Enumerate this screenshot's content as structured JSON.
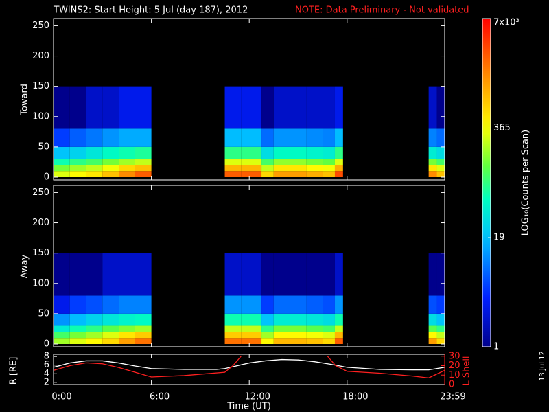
{
  "chart_data": [
    {
      "type": "heatmap",
      "title": "TWINS2: Start Height:  5 Jul (day 187), 2012",
      "note": "NOTE: Data Preliminary - Not validated",
      "ylabel": "Toward",
      "x_bins": [
        0,
        1,
        2,
        3,
        4,
        5,
        6,
        10.5,
        11.5,
        12.75,
        13.5,
        14.5,
        15.5,
        16.5,
        17.25,
        17.75,
        23,
        23.5,
        23.983
      ],
      "y_bins": [
        0,
        10,
        20,
        30,
        50,
        80,
        150
      ],
      "z": [
        [
          300,
          400,
          500,
          800,
          1500,
          2500,
          null,
          2500,
          2500,
          600,
          1200,
          1200,
          1000,
          800,
          3000,
          null,
          1500,
          800
        ],
        [
          150,
          200,
          250,
          350,
          600,
          800,
          null,
          900,
          900,
          250,
          500,
          500,
          400,
          350,
          1000,
          null,
          500,
          300
        ],
        [
          60,
          80,
          100,
          150,
          200,
          250,
          null,
          300,
          300,
          100,
          180,
          180,
          150,
          130,
          300,
          null,
          150,
          100
        ],
        [
          20,
          25,
          35,
          50,
          60,
          70,
          null,
          80,
          80,
          30,
          50,
          50,
          45,
          40,
          80,
          null,
          40,
          30
        ],
        [
          5,
          7,
          9,
          12,
          15,
          15,
          null,
          18,
          18,
          8,
          12,
          12,
          11,
          10,
          18,
          null,
          10,
          8
        ],
        [
          1,
          1,
          2,
          2,
          3,
          3,
          null,
          3,
          3,
          1,
          2,
          2,
          2,
          2,
          3,
          null,
          2,
          1
        ]
      ],
      "ylim": [
        0,
        255
      ],
      "yticks": [
        0,
        50,
        100,
        150,
        200,
        250
      ],
      "zscale": "log",
      "zlim": [
        1,
        7000
      ],
      "zticks": [
        1,
        19,
        365,
        {
          "value": 7000,
          "label": "7x10³"
        }
      ],
      "zlabel": "LOG₁₀(Counts per Scan)"
    },
    {
      "type": "heatmap",
      "ylabel": "Away",
      "x_bins": [
        0,
        1,
        2,
        3,
        4,
        5,
        6,
        10.5,
        11.5,
        12.75,
        13.5,
        14.5,
        15.5,
        16.5,
        17.25,
        17.75,
        23,
        23.5,
        23.983
      ],
      "y_bins": [
        0,
        10,
        20,
        30,
        50,
        80,
        150
      ],
      "z": [
        [
          200,
          300,
          400,
          600,
          1200,
          2000,
          null,
          2000,
          2000,
          400,
          900,
          900,
          800,
          600,
          2500,
          null,
          1200,
          600
        ],
        [
          100,
          150,
          200,
          300,
          500,
          700,
          null,
          700,
          700,
          200,
          400,
          400,
          350,
          300,
          900,
          null,
          400,
          250
        ],
        [
          40,
          60,
          80,
          120,
          160,
          200,
          null,
          250,
          250,
          80,
          150,
          150,
          120,
          100,
          250,
          null,
          120,
          80
        ],
        [
          12,
          18,
          25,
          35,
          45,
          50,
          null,
          60,
          60,
          20,
          40,
          40,
          35,
          30,
          60,
          null,
          30,
          20
        ],
        [
          3,
          5,
          6,
          8,
          10,
          10,
          null,
          12,
          12,
          5,
          8,
          8,
          7,
          6,
          12,
          null,
          6,
          5
        ],
        [
          1,
          1,
          1,
          2,
          2,
          2,
          null,
          2,
          2,
          1,
          1,
          1,
          1,
          1,
          2,
          null,
          1,
          1
        ]
      ],
      "ylim": [
        0,
        255
      ],
      "yticks": [
        0,
        50,
        100,
        150,
        200,
        250
      ]
    },
    {
      "type": "line",
      "xlabel": "Time (UT)",
      "xlim": [
        0,
        23.983
      ],
      "xticks": [
        {
          "value": 0,
          "label": "0:00"
        },
        {
          "value": 6,
          "label": "6:00"
        },
        {
          "value": 12,
          "label": "12:00"
        },
        {
          "value": 18,
          "label": "18:00"
        },
        {
          "value": 23.983,
          "label": "23:59"
        }
      ],
      "ylabel": "R [RE]",
      "ylim": [
        1.5,
        8.5
      ],
      "yticks": [
        2,
        4,
        6,
        8
      ],
      "y2label": "L Shell",
      "y2lim": [
        0,
        32
      ],
      "y2ticks": [
        0,
        10,
        20,
        30
      ],
      "series": [
        {
          "color": "#ffffff",
          "x": [
            0,
            1,
            2,
            3,
            4,
            5,
            6,
            8,
            10,
            10.5,
            12,
            13,
            14,
            15,
            16,
            17,
            18,
            20,
            22,
            23,
            23.983
          ],
          "values": [
            5.5,
            6.5,
            7.0,
            7.0,
            6.5,
            5.8,
            5.2,
            5.0,
            5.0,
            5.2,
            6.5,
            7.0,
            7.3,
            7.2,
            6.8,
            6.2,
            5.5,
            5.0,
            4.9,
            4.9,
            5.5
          ]
        },
        {
          "color": "#ff2020",
          "axis": "y2",
          "x": [
            0,
            1,
            2,
            3,
            4,
            5,
            6,
            8,
            10.5,
            11,
            11.5,
            14,
            16.8,
            17.3,
            18,
            20,
            22,
            23,
            23.983
          ],
          "values": [
            15,
            20,
            23,
            22,
            18,
            13,
            8,
            9.5,
            13,
            20,
            30,
            null,
            30,
            20,
            14,
            12,
            9,
            7,
            15
          ]
        }
      ]
    }
  ],
  "stamp": "13 Jul 12"
}
